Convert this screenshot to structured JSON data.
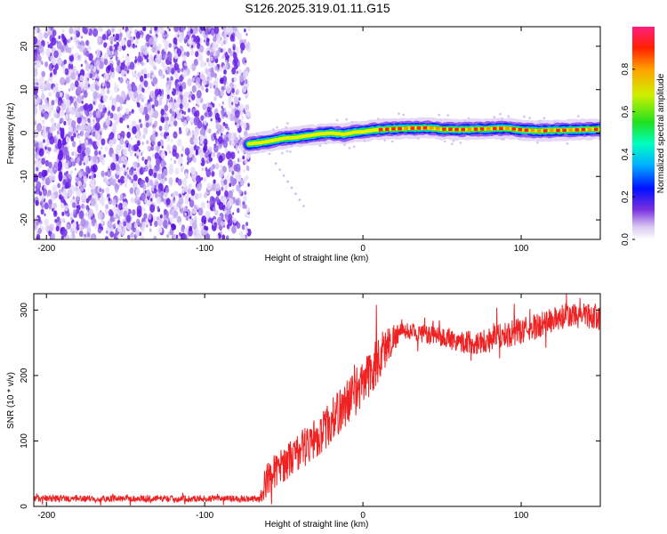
{
  "title": "S126.2025.319.01.11.G15",
  "chart_data": [
    {
      "type": "heatmap",
      "name": "spectrogram",
      "xlabel": "Height of straight line (km)",
      "ylabel": "Frequency (Hz)",
      "xlim": [
        -208,
        150
      ],
      "ylim": [
        -24.5,
        24.5
      ],
      "xticks": [
        -200,
        -100,
        0,
        100
      ],
      "yticks": [
        -20,
        -10,
        0,
        10,
        20
      ],
      "noise_region_x": [
        -208,
        -72
      ],
      "signal_track": {
        "x": [
          -72,
          -65,
          -58,
          -50,
          -42,
          -35,
          -28,
          -20,
          -12,
          -5,
          0,
          5,
          10,
          20,
          30,
          40,
          50,
          60,
          70,
          80,
          90,
          100,
          110,
          120,
          130,
          140,
          150
        ],
        "freq_hz": [
          -2.5,
          -2.2,
          -1.8,
          -1.2,
          -1.0,
          -0.6,
          -0.2,
          0.0,
          -0.3,
          0.2,
          0.3,
          0.6,
          0.8,
          1.0,
          1.1,
          1.2,
          0.9,
          0.8,
          0.9,
          1.0,
          1.1,
          0.7,
          0.5,
          0.6,
          0.7,
          0.8,
          0.9
        ]
      },
      "colorbar": {
        "label": "Normalized spectral amplitude",
        "ticks": [
          0.0,
          0.2,
          0.4,
          0.6,
          0.8
        ],
        "range": [
          0,
          1
        ]
      }
    },
    {
      "type": "line",
      "name": "snr",
      "xlabel": "Height of straight line (km)",
      "ylabel": "SNR (10 * v/v)",
      "xlim": [
        -208,
        150
      ],
      "ylim": [
        0,
        325
      ],
      "xticks": [
        -200,
        -100,
        0,
        100
      ],
      "yticks": [
        0,
        100,
        200,
        300
      ],
      "color": "#ee2222",
      "trend": {
        "x": [
          -208,
          -150,
          -100,
          -80,
          -65,
          -60,
          -55,
          -50,
          -45,
          -40,
          -35,
          -30,
          -25,
          -20,
          -15,
          -10,
          -5,
          0,
          5,
          10,
          15,
          20,
          25,
          30,
          40,
          50,
          60,
          70,
          80,
          90,
          100,
          110,
          120,
          130,
          140,
          150
        ],
        "y": [
          12,
          12,
          12,
          12,
          12,
          45,
          55,
          65,
          75,
          85,
          95,
          105,
          115,
          130,
          145,
          160,
          175,
          185,
          205,
          225,
          245,
          260,
          268,
          268,
          262,
          258,
          253,
          250,
          255,
          262,
          268,
          275,
          285,
          290,
          292,
          290
        ]
      },
      "noise_amplitude": {
        "x": [
          -208,
          -65,
          -62,
          10,
          25,
          80,
          150
        ],
        "amp": [
          5,
          5,
          25,
          40,
          12,
          20,
          20
        ]
      }
    }
  ]
}
